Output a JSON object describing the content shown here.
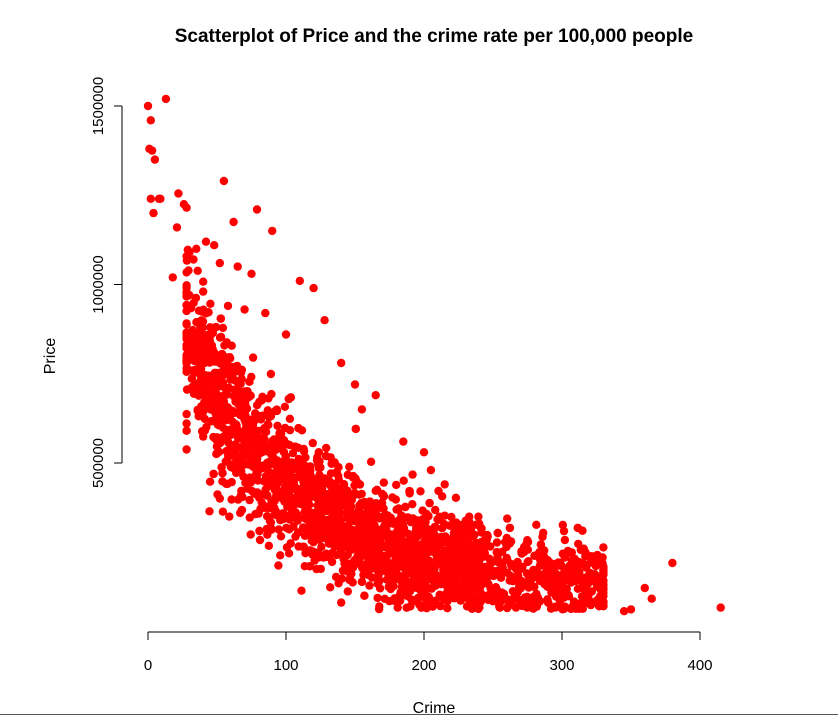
{
  "chart_data": {
    "type": "scatter",
    "title": "Scatterplot of Price and the crime rate per 100,000 people",
    "xlabel": "Crime",
    "ylabel": "Price",
    "xlim": [
      0,
      415
    ],
    "ylim": [
      60000,
      1525000
    ],
    "x_ticks": [
      0,
      100,
      200,
      300,
      400
    ],
    "x_tick_labels": [
      "0",
      "100",
      "200",
      "300",
      "400"
    ],
    "y_ticks": [
      500000,
      1000000,
      1500000
    ],
    "y_tick_labels": [
      "500000",
      "1000000",
      "1500000"
    ],
    "grid": false,
    "legend": "none",
    "point_color": "#ff0000",
    "series": [
      {
        "x": [
          0,
          2,
          1,
          3,
          5,
          13,
          8,
          2,
          4,
          9,
          55,
          22,
          26,
          79,
          62,
          28,
          90,
          21,
          42,
          35,
          48,
          18,
          33,
          52,
          65,
          75,
          30,
          40,
          110,
          120,
          128,
          58,
          70,
          85,
          45,
          100,
          140,
          150,
          165,
          155,
          185,
          200,
          205,
          215,
          240,
          260,
          280,
          290,
          300,
          310,
          320,
          330,
          345,
          350,
          360,
          365,
          415,
          380
        ],
        "y": [
          1500000,
          1460000,
          1380000,
          1375000,
          1350000,
          1520000,
          1240000,
          1240000,
          1200000,
          1240000,
          1290000,
          1255000,
          1225000,
          1210000,
          1175000,
          1215000,
          1150000,
          1160000,
          1120000,
          1100000,
          1110000,
          1020000,
          1070000,
          1060000,
          1050000,
          1030000,
          970000,
          980000,
          1010000,
          990000,
          900000,
          940000,
          930000,
          920000,
          880000,
          860000,
          780000,
          720000,
          690000,
          650000,
          560000,
          530000,
          480000,
          440000,
          330000,
          290000,
          240000,
          200000,
          180000,
          200000,
          190000,
          170000,
          85000,
          90000,
          150000,
          120000,
          95000,
          220000
        ]
      }
    ]
  }
}
